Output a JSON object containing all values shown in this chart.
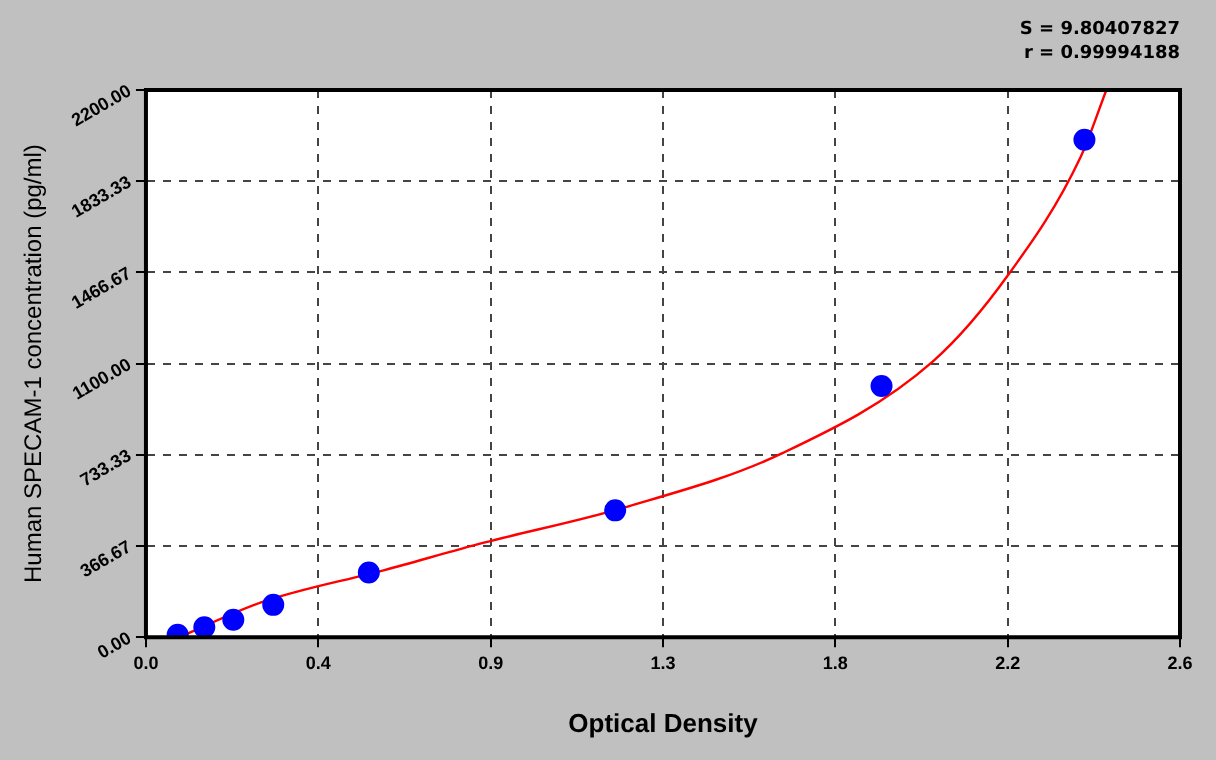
{
  "chart_data": {
    "type": "scatter",
    "xlabel": "Optical Density",
    "ylabel": "Human SPECAM-1 concentration (pg/ml)",
    "annotations": [
      "S = 9.80407827",
      "r = 0.99994188"
    ],
    "series": [
      {
        "color": "#0000ff",
        "marker": "circle",
        "x": [
          0.081,
          0.149,
          0.223,
          0.325,
          0.569,
          1.198,
          1.878,
          2.396
        ],
        "values": [
          10,
          40,
          70,
          130,
          260,
          510,
          1010,
          2000
        ]
      },
      {
        "type": "line",
        "color": "#ff0000",
        "marker": "none",
        "line_style": "solid",
        "x": [
          0.085,
          0.294,
          0.609,
          0.863,
          1.218,
          1.625,
          2.01,
          2.203,
          2.386,
          2.452
        ],
        "values": [
          0,
          140,
          270,
          380,
          520,
          740,
          1110,
          1460,
          1930,
          2200
        ]
      }
    ],
    "xlim": [
      0,
      2.64
    ],
    "xticks": [
      {
        "value": 0,
        "label": "0.0"
      },
      {
        "value": 0.44,
        "label": "0.4"
      },
      {
        "value": 0.88,
        "label": "0.9"
      },
      {
        "value": 1.32,
        "label": "1.3"
      },
      {
        "value": 1.76,
        "label": "1.8"
      },
      {
        "value": 2.2,
        "label": "2.2"
      },
      {
        "value": 2.64,
        "label": "2.6"
      }
    ],
    "ylim": [
      0,
      2200
    ],
    "yticks": [
      {
        "value": 0,
        "label": "0.00"
      },
      {
        "value": 366.67,
        "label": "366.67"
      },
      {
        "value": 733.33,
        "label": "733.33"
      },
      {
        "value": 1100,
        "label": "1100.00"
      },
      {
        "value": 1466.67,
        "label": "1466.67"
      },
      {
        "value": 1833.33,
        "label": "1833.33"
      },
      {
        "value": 2200,
        "label": "2200.00"
      }
    ],
    "grid": true,
    "legend": false
  }
}
